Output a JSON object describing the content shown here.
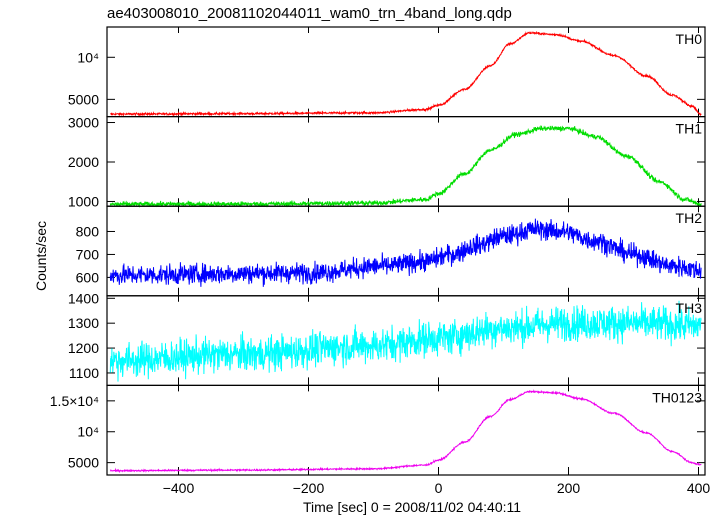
{
  "chart_data": {
    "type": "line",
    "title": "ae403008010_20081102044011_wam0_trn_4band_long.qdp",
    "xlabel": "Time [sec] 0 = 2008/11/02 04:40:11",
    "ylabel": "Counts/sec",
    "xlim": [
      -510,
      410
    ],
    "x_ticks": [
      -400,
      -200,
      0,
      200,
      400
    ],
    "grid": false,
    "panels": [
      {
        "name": "TH0",
        "color": "#ff0000",
        "ylim": [
          2950,
          13600
        ],
        "yticks": [
          {
            "v": 5000,
            "label": "5000"
          },
          {
            "v": 10000,
            "label": "10⁴"
          }
        ],
        "noise": 60,
        "profile": [
          [
            -505,
            3250
          ],
          [
            -300,
            3300
          ],
          [
            -100,
            3400
          ],
          [
            -20,
            3800
          ],
          [
            0,
            4300
          ],
          [
            40,
            6200
          ],
          [
            80,
            9000
          ],
          [
            110,
            11600
          ],
          [
            140,
            12900
          ],
          [
            180,
            12700
          ],
          [
            220,
            11900
          ],
          [
            270,
            10200
          ],
          [
            320,
            7800
          ],
          [
            360,
            5500
          ],
          [
            390,
            4200
          ],
          [
            405,
            3100
          ]
        ]
      },
      {
        "name": "TH1",
        "color": "#00dd00",
        "ylim": [
          880,
          3150
        ],
        "yticks": [
          {
            "v": 1000,
            "label": "1000"
          },
          {
            "v": 2000,
            "label": "2000"
          },
          {
            "v": 3000,
            "label": "3000"
          }
        ],
        "noise": 30,
        "profile": [
          [
            -505,
            930
          ],
          [
            -300,
            935
          ],
          [
            -100,
            960
          ],
          [
            -20,
            1050
          ],
          [
            0,
            1200
          ],
          [
            40,
            1700
          ],
          [
            80,
            2300
          ],
          [
            120,
            2700
          ],
          [
            160,
            2850
          ],
          [
            200,
            2850
          ],
          [
            240,
            2650
          ],
          [
            290,
            2150
          ],
          [
            340,
            1500
          ],
          [
            380,
            1050
          ],
          [
            405,
            920
          ]
        ]
      },
      {
        "name": "TH2",
        "color": "#0000ff",
        "ylim": [
          520,
          910
        ],
        "yticks": [
          {
            "v": 600,
            "label": "600"
          },
          {
            "v": 700,
            "label": "700"
          },
          {
            "v": 800,
            "label": "800"
          }
        ],
        "noise": 22,
        "profile": [
          [
            -505,
            610
          ],
          [
            -200,
            620
          ],
          [
            -80,
            650
          ],
          [
            -20,
            670
          ],
          [
            20,
            700
          ],
          [
            60,
            740
          ],
          [
            100,
            780
          ],
          [
            150,
            810
          ],
          [
            190,
            800
          ],
          [
            240,
            760
          ],
          [
            300,
            700
          ],
          [
            360,
            650
          ],
          [
            405,
            630
          ]
        ]
      },
      {
        "name": "TH3",
        "color": "#00ffff",
        "ylim": [
          1050,
          1410
        ],
        "yticks": [
          {
            "v": 1100,
            "label": "1100"
          },
          {
            "v": 1200,
            "label": "1200"
          },
          {
            "v": 1300,
            "label": "1300"
          },
          {
            "v": 1400,
            "label": "1400"
          }
        ],
        "noise": 35,
        "profile": [
          [
            -505,
            1150
          ],
          [
            -300,
            1175
          ],
          [
            -100,
            1210
          ],
          [
            0,
            1240
          ],
          [
            100,
            1280
          ],
          [
            200,
            1300
          ],
          [
            300,
            1300
          ],
          [
            405,
            1290
          ]
        ]
      },
      {
        "name": "TH0123",
        "color": "#ee00ee",
        "ylim": [
          3000,
          17500
        ],
        "yticks": [
          {
            "v": 5000,
            "label": "5000"
          },
          {
            "v": 10000,
            "label": "10⁴"
          },
          {
            "v": 15000,
            "label": "1.5×10⁴"
          }
        ],
        "noise": 60,
        "profile": [
          [
            -505,
            3700
          ],
          [
            -300,
            3800
          ],
          [
            -100,
            4000
          ],
          [
            -20,
            4600
          ],
          [
            0,
            5400
          ],
          [
            40,
            8300
          ],
          [
            80,
            12500
          ],
          [
            110,
            15200
          ],
          [
            140,
            16500
          ],
          [
            180,
            16300
          ],
          [
            220,
            15300
          ],
          [
            270,
            13000
          ],
          [
            320,
            9800
          ],
          [
            360,
            6800
          ],
          [
            390,
            5000
          ],
          [
            405,
            4600
          ]
        ]
      }
    ]
  }
}
